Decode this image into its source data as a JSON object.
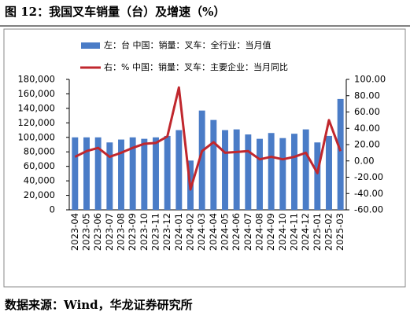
{
  "chart_data": {
    "type": "bar_line",
    "title": "图 12：我国叉车销量（台）及增速（%）",
    "source": "数据来源：Wind，华龙证券研究所",
    "categories": [
      "2023-04",
      "2023-05",
      "2023-06",
      "2023-07",
      "2023-08",
      "2023-09",
      "2023-10",
      "2023-11",
      "2023-12",
      "2024-01",
      "2024-02",
      "2024-03",
      "2024-04",
      "2024-05",
      "2024-06",
      "2024-07",
      "2024-08",
      "2024-09",
      "2024-10",
      "2024-11",
      "2024-12",
      "2025-01",
      "2025-02",
      "2025-03"
    ],
    "series": [
      {
        "name": "左：台 中国：销量：叉车：全行业：当月值",
        "type": "bar",
        "color": "#4a7cc7",
        "axis": "y",
        "values": [
          100000,
          100000,
          100000,
          93000,
          97000,
          100000,
          98000,
          100000,
          102000,
          110000,
          68000,
          137000,
          124000,
          110000,
          111000,
          104000,
          98000,
          106000,
          99000,
          105000,
          111000,
          93000,
          102000,
          153000
        ]
      },
      {
        "name": "右：% 中国：销量：叉车：主要企业：当月同比",
        "type": "line",
        "color": "#c0272d",
        "axis": "y2",
        "values": [
          5,
          12,
          16,
          5,
          10,
          16,
          21,
          22,
          30,
          90,
          -35,
          12,
          23,
          10,
          11,
          12,
          2,
          5,
          2,
          5,
          10,
          -15,
          50,
          12
        ]
      }
    ],
    "ylim": [
      0,
      180000
    ],
    "yticks": [
      0,
      {
        "value": 20000,
        "label": "20,000"
      },
      {
        "value": 40000,
        "label": "40,000"
      },
      {
        "value": 60000,
        "label": "60,000"
      },
      {
        "value": 80000,
        "label": "80,000"
      },
      {
        "value": 100000,
        "label": "100,000"
      },
      {
        "value": 120000,
        "label": "120,000"
      },
      {
        "value": 140000,
        "label": "140,000"
      },
      {
        "value": 160000,
        "label": "160,000"
      },
      {
        "value": 180000,
        "label": "180,000"
      }
    ],
    "y2lim": [
      -60,
      100
    ],
    "y2ticks": [
      {
        "value": -60,
        "label": "-60.00"
      },
      {
        "value": -40,
        "label": "-40.00"
      },
      {
        "value": -20,
        "label": "-20.00"
      },
      {
        "value": 0,
        "label": "0.00"
      },
      {
        "value": 20,
        "label": "20.00"
      },
      {
        "value": 40,
        "label": "40.00"
      },
      {
        "value": 60,
        "label": "60.00"
      },
      {
        "value": 80,
        "label": "80.00"
      },
      {
        "value": 100,
        "label": "100.00"
      }
    ]
  }
}
